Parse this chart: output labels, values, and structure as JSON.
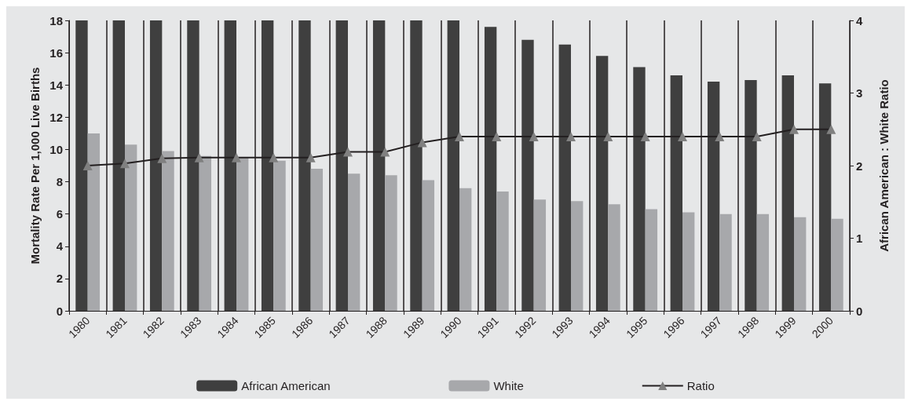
{
  "chart_data": {
    "type": "bar",
    "categories": [
      "1980",
      "1981",
      "1982",
      "1983",
      "1984",
      "1985",
      "1986",
      "1987",
      "1988",
      "1989",
      "1990",
      "1991",
      "1992",
      "1993",
      "1994",
      "1995",
      "1996",
      "1997",
      "1998",
      "1999",
      "2000"
    ],
    "series": [
      {
        "name": "African American",
        "color": "#3f3f3f",
        "values": [
          18,
          18,
          18,
          18,
          18,
          18,
          18,
          18,
          18,
          18,
          18,
          17.6,
          16.8,
          16.5,
          15.8,
          15.1,
          14.6,
          14.2,
          14.3,
          14.6,
          14.1
        ]
      },
      {
        "name": "White",
        "color": "#a7a8ab",
        "values": [
          11.0,
          10.3,
          9.9,
          9.6,
          9.5,
          9.3,
          8.8,
          8.5,
          8.4,
          8.1,
          7.6,
          7.4,
          6.9,
          6.8,
          6.6,
          6.3,
          6.1,
          6.0,
          6.0,
          5.8,
          5.7
        ]
      },
      {
        "name": "Ratio",
        "type": "line",
        "axis": "y2",
        "color": "#231f20",
        "marker": "triangle",
        "values": [
          2.0,
          2.03,
          2.1,
          2.11,
          2.11,
          2.11,
          2.11,
          2.19,
          2.19,
          2.32,
          2.4,
          2.4,
          2.4,
          2.4,
          2.4,
          2.4,
          2.4,
          2.4,
          2.4,
          2.5,
          2.5
        ]
      }
    ],
    "ylabel": "Mortality Rate Per 1,000 Live Births",
    "y2label": "African American : White Ratio",
    "ylim": [
      0,
      18
    ],
    "yticks": [
      0,
      2,
      4,
      6,
      8,
      10,
      12,
      14,
      16,
      18
    ],
    "y2lim": [
      0,
      4
    ],
    "y2ticks": [
      0,
      1,
      2,
      3,
      4
    ],
    "grid": "x",
    "legend": "bottom"
  }
}
